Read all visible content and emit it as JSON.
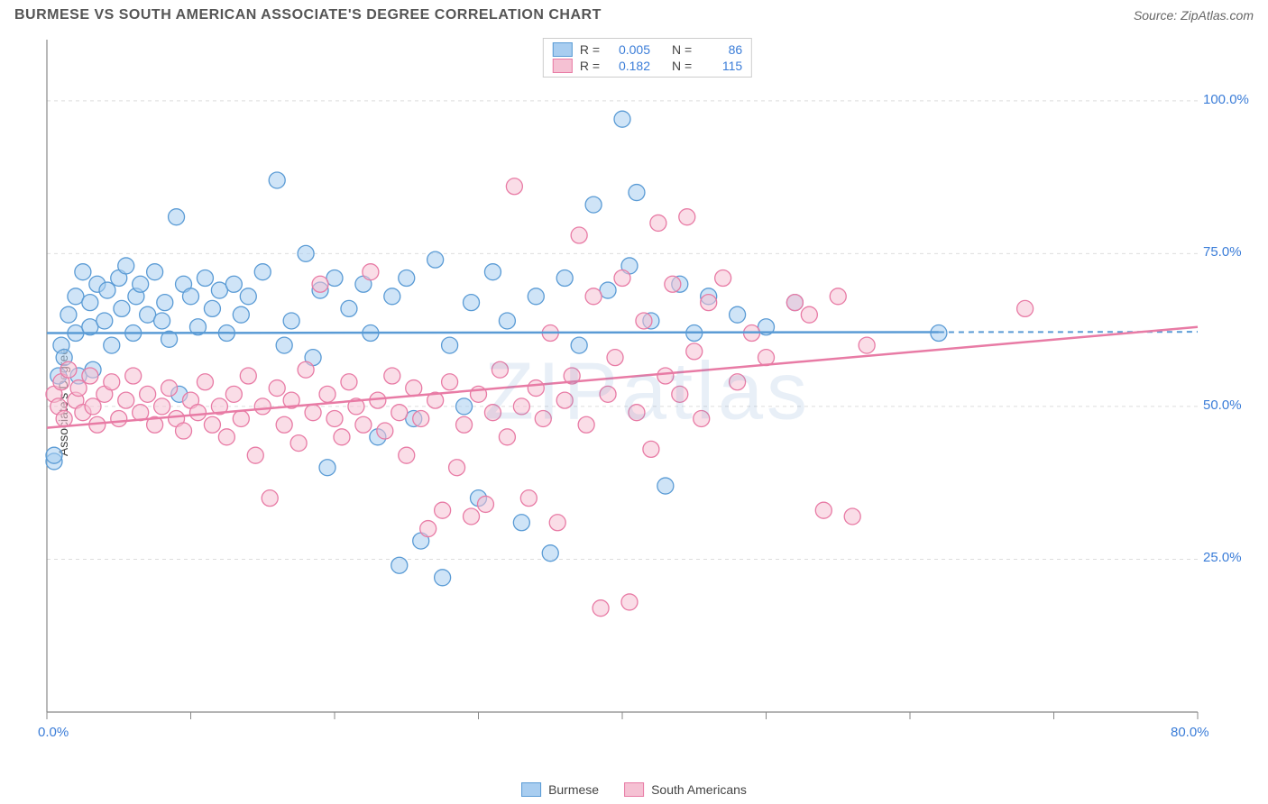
{
  "title": "BURMESE VS SOUTH AMERICAN ASSOCIATE'S DEGREE CORRELATION CHART",
  "source_label": "Source: ZipAtlas.com",
  "y_axis_label": "Associate's Degree",
  "watermark": "ZIPatlas",
  "chart": {
    "type": "scatter",
    "background_color": "#ffffff",
    "grid_color": "#dddddd",
    "plot_border_color": "#888888",
    "xlim": [
      0,
      80
    ],
    "ylim": [
      0,
      110
    ],
    "x_ticks": [
      0,
      10,
      20,
      30,
      40,
      50,
      60,
      70,
      80
    ],
    "x_tick_labels": {
      "0": "0.0%",
      "80": "80.0%"
    },
    "y_ticks": [
      25,
      50,
      75,
      100
    ],
    "y_tick_labels": {
      "25": "25.0%",
      "50": "50.0%",
      "75": "75.0%",
      "100": "100.0%"
    },
    "tick_label_color": "#3b7dd8",
    "tick_label_fontsize": 15,
    "marker_radius": 9,
    "marker_opacity": 0.55,
    "series": [
      {
        "name": "Burmese",
        "fill_color": "#a8cdf0",
        "stroke_color": "#5a9bd5",
        "R": "0.005",
        "N": "86",
        "trend": {
          "y_start": 62.0,
          "y_end": 62.2,
          "x_start": 0,
          "x_end": 62,
          "dash_from": 62,
          "dash_to": 80
        },
        "points": [
          [
            0.5,
            41
          ],
          [
            0.5,
            42
          ],
          [
            0.8,
            55
          ],
          [
            1,
            60
          ],
          [
            1.2,
            58
          ],
          [
            1.5,
            65
          ],
          [
            2,
            62
          ],
          [
            2,
            68
          ],
          [
            2.2,
            55
          ],
          [
            2.5,
            72
          ],
          [
            3,
            63
          ],
          [
            3,
            67
          ],
          [
            3.2,
            56
          ],
          [
            3.5,
            70
          ],
          [
            4,
            64
          ],
          [
            4.2,
            69
          ],
          [
            4.5,
            60
          ],
          [
            5,
            71
          ],
          [
            5.2,
            66
          ],
          [
            5.5,
            73
          ],
          [
            6,
            62
          ],
          [
            6.2,
            68
          ],
          [
            6.5,
            70
          ],
          [
            7,
            65
          ],
          [
            7.5,
            72
          ],
          [
            8,
            64
          ],
          [
            8.2,
            67
          ],
          [
            8.5,
            61
          ],
          [
            9,
            81
          ],
          [
            9.2,
            52
          ],
          [
            9.5,
            70
          ],
          [
            10,
            68
          ],
          [
            10.5,
            63
          ],
          [
            11,
            71
          ],
          [
            11.5,
            66
          ],
          [
            12,
            69
          ],
          [
            12.5,
            62
          ],
          [
            13,
            70
          ],
          [
            13.5,
            65
          ],
          [
            14,
            68
          ],
          [
            15,
            72
          ],
          [
            16,
            87
          ],
          [
            16.5,
            60
          ],
          [
            17,
            64
          ],
          [
            18,
            75
          ],
          [
            18.5,
            58
          ],
          [
            19,
            69
          ],
          [
            19.5,
            40
          ],
          [
            20,
            71
          ],
          [
            21,
            66
          ],
          [
            22,
            70
          ],
          [
            22.5,
            62
          ],
          [
            23,
            45
          ],
          [
            24,
            68
          ],
          [
            24.5,
            24
          ],
          [
            25,
            71
          ],
          [
            25.5,
            48
          ],
          [
            26,
            28
          ],
          [
            27,
            74
          ],
          [
            27.5,
            22
          ],
          [
            28,
            60
          ],
          [
            29,
            50
          ],
          [
            29.5,
            67
          ],
          [
            30,
            35
          ],
          [
            31,
            72
          ],
          [
            32,
            64
          ],
          [
            33,
            31
          ],
          [
            34,
            68
          ],
          [
            35,
            26
          ],
          [
            36,
            71
          ],
          [
            37,
            60
          ],
          [
            38,
            83
          ],
          [
            39,
            69
          ],
          [
            40,
            97
          ],
          [
            40.5,
            73
          ],
          [
            41,
            85
          ],
          [
            42,
            64
          ],
          [
            43,
            37
          ],
          [
            44,
            70
          ],
          [
            45,
            62
          ],
          [
            46,
            68
          ],
          [
            48,
            65
          ],
          [
            50,
            63
          ],
          [
            52,
            67
          ],
          [
            62,
            62
          ]
        ]
      },
      {
        "name": "South Americans",
        "fill_color": "#f5c1d3",
        "stroke_color": "#e87ba5",
        "R": "0.182",
        "N": "115",
        "trend": {
          "y_start": 46.5,
          "y_end": 63.0,
          "x_start": 0,
          "x_end": 80
        },
        "points": [
          [
            0.5,
            52
          ],
          [
            0.8,
            50
          ],
          [
            1,
            54
          ],
          [
            1.2,
            48
          ],
          [
            1.5,
            56
          ],
          [
            2,
            51
          ],
          [
            2.2,
            53
          ],
          [
            2.5,
            49
          ],
          [
            3,
            55
          ],
          [
            3.2,
            50
          ],
          [
            3.5,
            47
          ],
          [
            4,
            52
          ],
          [
            4.5,
            54
          ],
          [
            5,
            48
          ],
          [
            5.5,
            51
          ],
          [
            6,
            55
          ],
          [
            6.5,
            49
          ],
          [
            7,
            52
          ],
          [
            7.5,
            47
          ],
          [
            8,
            50
          ],
          [
            8.5,
            53
          ],
          [
            9,
            48
          ],
          [
            9.5,
            46
          ],
          [
            10,
            51
          ],
          [
            10.5,
            49
          ],
          [
            11,
            54
          ],
          [
            11.5,
            47
          ],
          [
            12,
            50
          ],
          [
            12.5,
            45
          ],
          [
            13,
            52
          ],
          [
            13.5,
            48
          ],
          [
            14,
            55
          ],
          [
            14.5,
            42
          ],
          [
            15,
            50
          ],
          [
            15.5,
            35
          ],
          [
            16,
            53
          ],
          [
            16.5,
            47
          ],
          [
            17,
            51
          ],
          [
            17.5,
            44
          ],
          [
            18,
            56
          ],
          [
            18.5,
            49
          ],
          [
            19,
            70
          ],
          [
            19.5,
            52
          ],
          [
            20,
            48
          ],
          [
            20.5,
            45
          ],
          [
            21,
            54
          ],
          [
            21.5,
            50
          ],
          [
            22,
            47
          ],
          [
            22.5,
            72
          ],
          [
            23,
            51
          ],
          [
            23.5,
            46
          ],
          [
            24,
            55
          ],
          [
            24.5,
            49
          ],
          [
            25,
            42
          ],
          [
            25.5,
            53
          ],
          [
            26,
            48
          ],
          [
            26.5,
            30
          ],
          [
            27,
            51
          ],
          [
            27.5,
            33
          ],
          [
            28,
            54
          ],
          [
            28.5,
            40
          ],
          [
            29,
            47
          ],
          [
            29.5,
            32
          ],
          [
            30,
            52
          ],
          [
            30.5,
            34
          ],
          [
            31,
            49
          ],
          [
            31.5,
            56
          ],
          [
            32,
            45
          ],
          [
            32.5,
            86
          ],
          [
            33,
            50
          ],
          [
            33.5,
            35
          ],
          [
            34,
            53
          ],
          [
            34.5,
            48
          ],
          [
            35,
            62
          ],
          [
            35.5,
            31
          ],
          [
            36,
            51
          ],
          [
            36.5,
            55
          ],
          [
            37,
            78
          ],
          [
            37.5,
            47
          ],
          [
            38,
            68
          ],
          [
            38.5,
            17
          ],
          [
            39,
            52
          ],
          [
            39.5,
            58
          ],
          [
            40,
            71
          ],
          [
            40.5,
            18
          ],
          [
            41,
            49
          ],
          [
            41.5,
            64
          ],
          [
            42,
            43
          ],
          [
            42.5,
            80
          ],
          [
            43,
            55
          ],
          [
            43.5,
            70
          ],
          [
            44,
            52
          ],
          [
            44.5,
            81
          ],
          [
            45,
            59
          ],
          [
            45.5,
            48
          ],
          [
            46,
            67
          ],
          [
            47,
            71
          ],
          [
            48,
            54
          ],
          [
            49,
            62
          ],
          [
            50,
            58
          ],
          [
            52,
            67
          ],
          [
            53,
            65
          ],
          [
            54,
            33
          ],
          [
            55,
            68
          ],
          [
            57,
            60
          ],
          [
            68,
            66
          ],
          [
            56,
            32
          ]
        ]
      }
    ]
  },
  "legend_labels": {
    "R_label": "R =",
    "N_label": "N ="
  },
  "bottom_legend": [
    "Burmese",
    "South Americans"
  ]
}
